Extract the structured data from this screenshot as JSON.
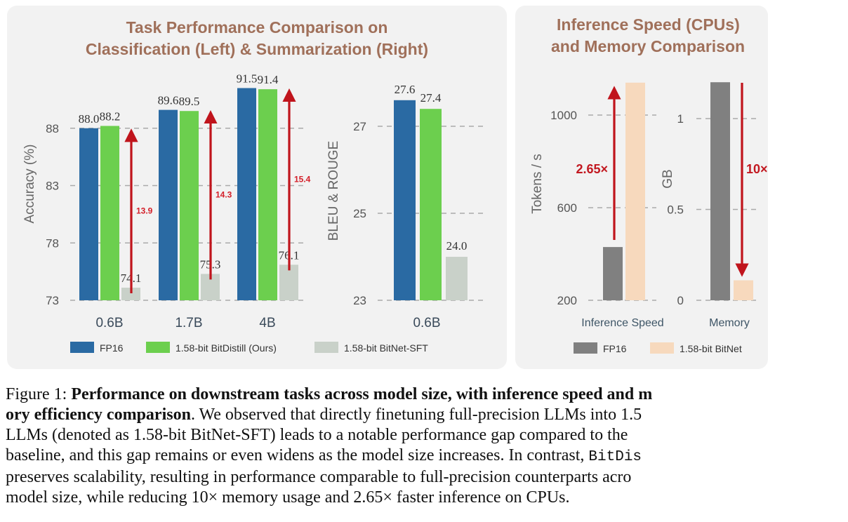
{
  "figure": {
    "left_panel": {
      "title_line1": "Task Performance Comparison on",
      "title_line2": "Classification (Left) & Summarization (Right)"
    },
    "right_panel": {
      "title_line1": "Inference Speed (CPUs)",
      "title_line2": "and Memory Comparison"
    },
    "caption": {
      "label": "Figure 1: ",
      "bold": "Performance on downstream tasks across model size, with inference speed and memory efficiency comparison",
      "lines": [
        {
          "prefix": "Figure 1: ",
          "bold": "Performance on downstream tasks across model size, with inference speed and m",
          "rest": ""
        },
        {
          "bold": "ory efficiency comparison",
          "rest": ". We observed that directly finetuning full-precision LLMs into 1.5"
        },
        {
          "text": "LLMs (denoted as 1.58-bit BitNet-SFT) leads to a notable performance gap compared to the"
        },
        {
          "text_before": "baseline, and this gap remains or even widens as the model size increases. In contrast, ",
          "mono": "BitDis"
        },
        {
          "text": "preserves scalability, resulting in performance comparable to full-precision counterparts acro"
        },
        {
          "text": "model size, while reducing 10× memory usage and 2.65× faster inference on CPUs."
        }
      ]
    }
  },
  "chart_data": [
    {
      "type": "bar",
      "title": "Task Performance Comparison on Classification (Left) & Summarization (Right)",
      "subtitle": "Classification",
      "xlabel": "",
      "ylabel": "Accuracy (%)",
      "ylim": [
        73,
        92
      ],
      "yticks": [
        73,
        78,
        83,
        88
      ],
      "grid": "dashed horizontal",
      "categories": [
        "0.6B",
        "1.7B",
        "4B"
      ],
      "series": [
        {
          "name": "FP16",
          "color": "#2a6aa3",
          "values": [
            88.0,
            89.6,
            91.5
          ],
          "labels": [
            "88.0",
            "89.6",
            "91.5"
          ]
        },
        {
          "name": "1.58-bit BitDistill (Ours)",
          "color": "#6ccf4e",
          "values": [
            88.2,
            89.5,
            91.4
          ],
          "labels": [
            "88.2",
            "89.5",
            "91.4"
          ]
        },
        {
          "name": "1.58-bit BitNet-SFT",
          "color": "#c9d1c9",
          "values": [
            74.1,
            75.3,
            76.1
          ],
          "labels": [
            "74.1",
            "75.3",
            "76.1"
          ]
        }
      ],
      "annotations": [
        {
          "category": "0.6B",
          "text": "13.9",
          "from": 74.1,
          "to": 88.0
        },
        {
          "category": "1.7B",
          "text": "14.3",
          "from": 75.3,
          "to": 89.6
        },
        {
          "category": "4B",
          "text": "15.4",
          "from": 76.1,
          "to": 91.5
        }
      ],
      "arrow_color": "#c0141c"
    },
    {
      "type": "bar",
      "subtitle": "Summarization",
      "xlabel": "",
      "ylabel": "BLEU & ROUGE",
      "ylim": [
        23,
        27.8
      ],
      "yticks": [
        23,
        25,
        27
      ],
      "grid": "dashed horizontal",
      "categories": [
        "0.6B"
      ],
      "series": [
        {
          "name": "FP16",
          "color": "#2a6aa3",
          "values": [
            27.6
          ],
          "labels": [
            "27.6"
          ]
        },
        {
          "name": "1.58-bit BitDistill (Ours)",
          "color": "#6ccf4e",
          "values": [
            27.4
          ],
          "labels": [
            "27.4"
          ]
        },
        {
          "name": "1.58-bit BitNet-SFT",
          "color": "#c9d1c9",
          "values": [
            24.0
          ],
          "labels": [
            "24.0"
          ]
        }
      ]
    },
    {
      "type": "bar",
      "title": "Inference Speed (CPUs) and Memory Comparison",
      "subtitle": "Inference Speed",
      "ylabel": "Tokens / s",
      "ylim": [
        200,
        1200
      ],
      "yticks": [
        200,
        600,
        1000
      ],
      "grid": "dashed horizontal",
      "categories": [
        "Inference Speed"
      ],
      "series": [
        {
          "name": "FP16",
          "color": "#808080",
          "values": [
            430
          ]
        },
        {
          "name": "1.58-bit BitNet",
          "color": "#f7d9bd",
          "values": [
            1140
          ]
        }
      ],
      "annotations": [
        {
          "text": "2.65×",
          "direction": "up"
        }
      ]
    },
    {
      "type": "bar",
      "subtitle": "Memory",
      "ylabel": "GB",
      "ylim": [
        0,
        1.25
      ],
      "yticks": [
        0,
        0.5,
        1
      ],
      "ytick_labels": [
        "0",
        "0.5",
        "1"
      ],
      "grid": "dashed horizontal",
      "categories": [
        "Memory"
      ],
      "series": [
        {
          "name": "FP16",
          "color": "#808080",
          "values": [
            1.2
          ]
        },
        {
          "name": "1.58-bit BitNet",
          "color": "#f7d9bd",
          "values": [
            0.11
          ]
        }
      ],
      "annotations": [
        {
          "text": "10×",
          "direction": "down"
        }
      ]
    }
  ],
  "legends": {
    "left": [
      "FP16",
      "1.58-bit BitDistill (Ours)",
      "1.58-bit BitNet-SFT"
    ],
    "right": [
      "FP16",
      "1.58-bit BitNet"
    ]
  }
}
